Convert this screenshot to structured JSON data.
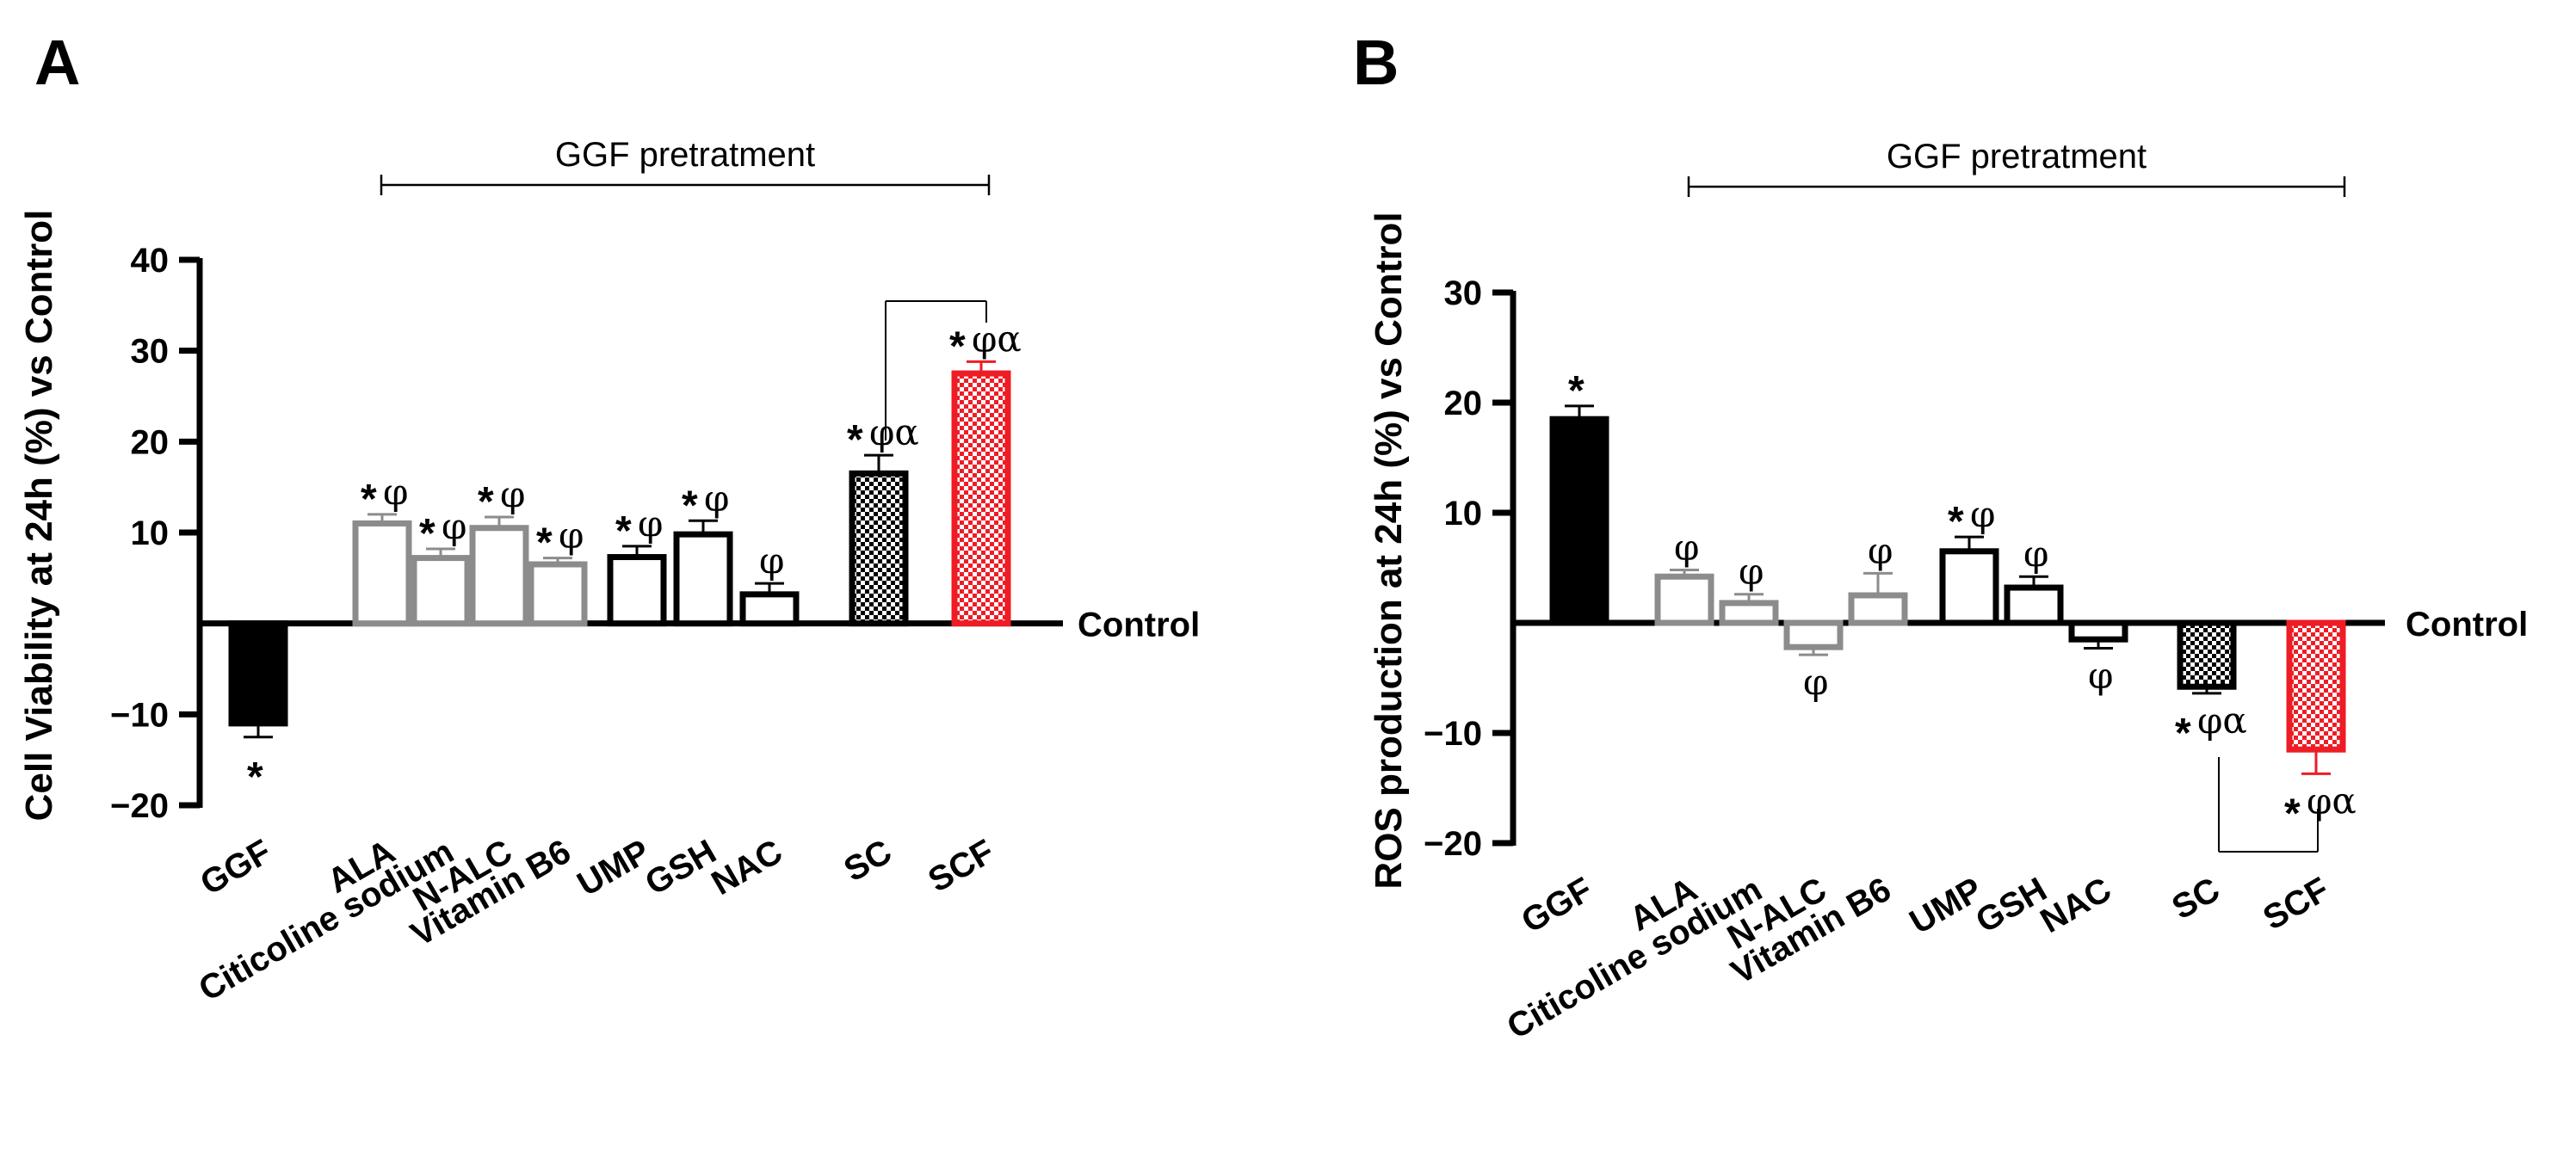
{
  "chart_data": [
    {
      "type": "bar",
      "panel": "A",
      "ylabel": "Cell Viability at 24h (%) vs Control",
      "ylim": [
        -20,
        40
      ],
      "yticks": [
        -20,
        -10,
        10,
        20,
        30,
        40
      ],
      "ytick_labels": [
        "−20",
        "−10",
        "10",
        "20",
        "30",
        "40"
      ],
      "reference_label": "Control",
      "bracket_label": "GGF pretratment",
      "categories": [
        "GGF",
        "ALA",
        "Citicoline sodium",
        "N-ALC",
        "Vitamin B6",
        "UMP",
        "GSH",
        "NAC",
        "SC",
        "SCF"
      ],
      "values": [
        -11,
        11,
        7.2,
        10.5,
        6.5,
        7.3,
        9.8,
        3.2,
        16.5,
        27.5
      ],
      "errors": [
        1.5,
        1.0,
        1.0,
        1.2,
        0.7,
        1.2,
        1.5,
        1.2,
        2.0,
        1.3
      ],
      "styles": [
        "black-solid",
        "gray-open",
        "gray-open",
        "gray-open",
        "gray-open",
        "black-open",
        "black-open",
        "black-open",
        "black-checker",
        "red-checker"
      ],
      "sig_star": [
        "*",
        "*",
        "*",
        "*",
        "*",
        "*",
        "*",
        "",
        "*",
        "*"
      ],
      "sig_greek": [
        "",
        "φ",
        "φ",
        "φ",
        "φ",
        "φ",
        "φ",
        "φ",
        "φα",
        "φα"
      ],
      "comparison": [
        "SC",
        "SCF"
      ]
    },
    {
      "type": "bar",
      "panel": "B",
      "ylabel": "ROS production at 24h (%) vs Control",
      "ylim": [
        -20,
        30
      ],
      "yticks": [
        -20,
        -10,
        10,
        20,
        30
      ],
      "ytick_labels": [
        "−20",
        "−10",
        "10",
        "20",
        "30"
      ],
      "reference_label": "Control",
      "bracket_label": "GGF pretratment",
      "categories": [
        "GGF",
        "ALA",
        "Citicoline sodium",
        "N-ALC",
        "Vitamin B6",
        "UMP",
        "GSH",
        "NAC",
        "SC",
        "SCF"
      ],
      "values": [
        18.5,
        4.2,
        1.8,
        -2.2,
        2.5,
        6.5,
        3.2,
        -1.5,
        -5.8,
        -11.5
      ],
      "errors": [
        1.2,
        0.6,
        0.8,
        0.7,
        2.0,
        1.3,
        1.0,
        0.8,
        0.6,
        2.2
      ],
      "styles": [
        "black-solid",
        "gray-open",
        "gray-open",
        "gray-open",
        "gray-open",
        "black-open",
        "black-open",
        "black-open",
        "black-checker",
        "red-checker"
      ],
      "sig_star": [
        "*",
        "",
        "",
        "",
        "",
        "*",
        "",
        "",
        "*",
        "*"
      ],
      "sig_greek": [
        "",
        "φ",
        "φ",
        "φ",
        "φ",
        "φ",
        "φ",
        "φ",
        "φα",
        "φα"
      ],
      "comparison": [
        "SC",
        "SCF"
      ]
    }
  ],
  "colors": {
    "black": "#000000",
    "gray": "#8c8c8c",
    "red": "#ee1c25"
  }
}
